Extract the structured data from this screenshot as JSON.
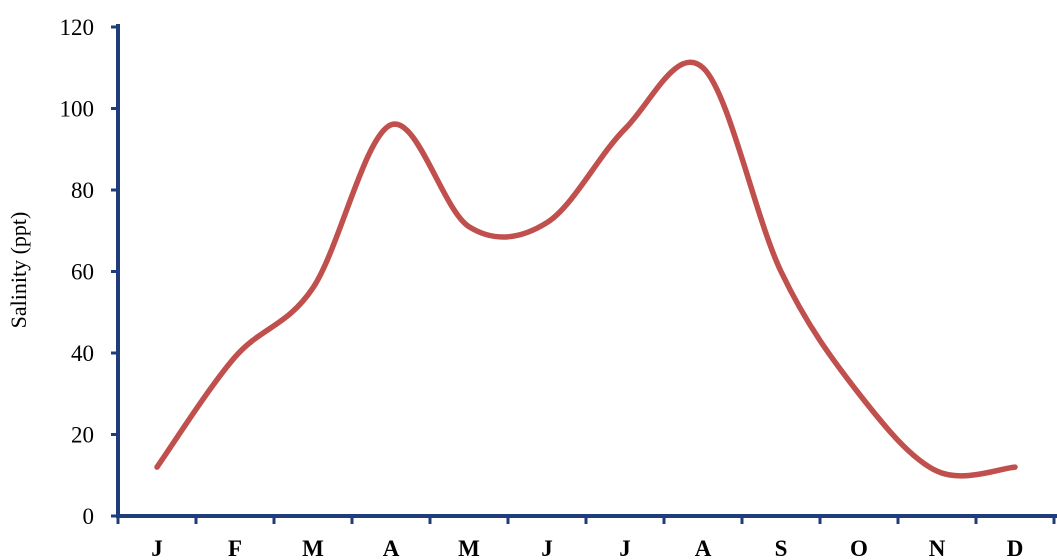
{
  "chart_data": {
    "type": "line",
    "title": "",
    "xlabel": "",
    "ylabel": "Salinity (ppt)",
    "categories": [
      "J",
      "F",
      "M",
      "A",
      "M",
      "J",
      "J",
      "A",
      "S",
      "O",
      "N",
      "D"
    ],
    "series": [
      {
        "values": [
          12,
          39,
          56,
          96,
          71,
          72,
          95,
          110,
          60,
          30,
          11,
          12
        ],
        "color": "#c0504d"
      }
    ],
    "ylim": [
      0,
      120
    ],
    "yticks": [
      0,
      20,
      40,
      60,
      80,
      100,
      120
    ],
    "grid": false,
    "legend": "none",
    "axis_color": "#1f3d7a"
  }
}
